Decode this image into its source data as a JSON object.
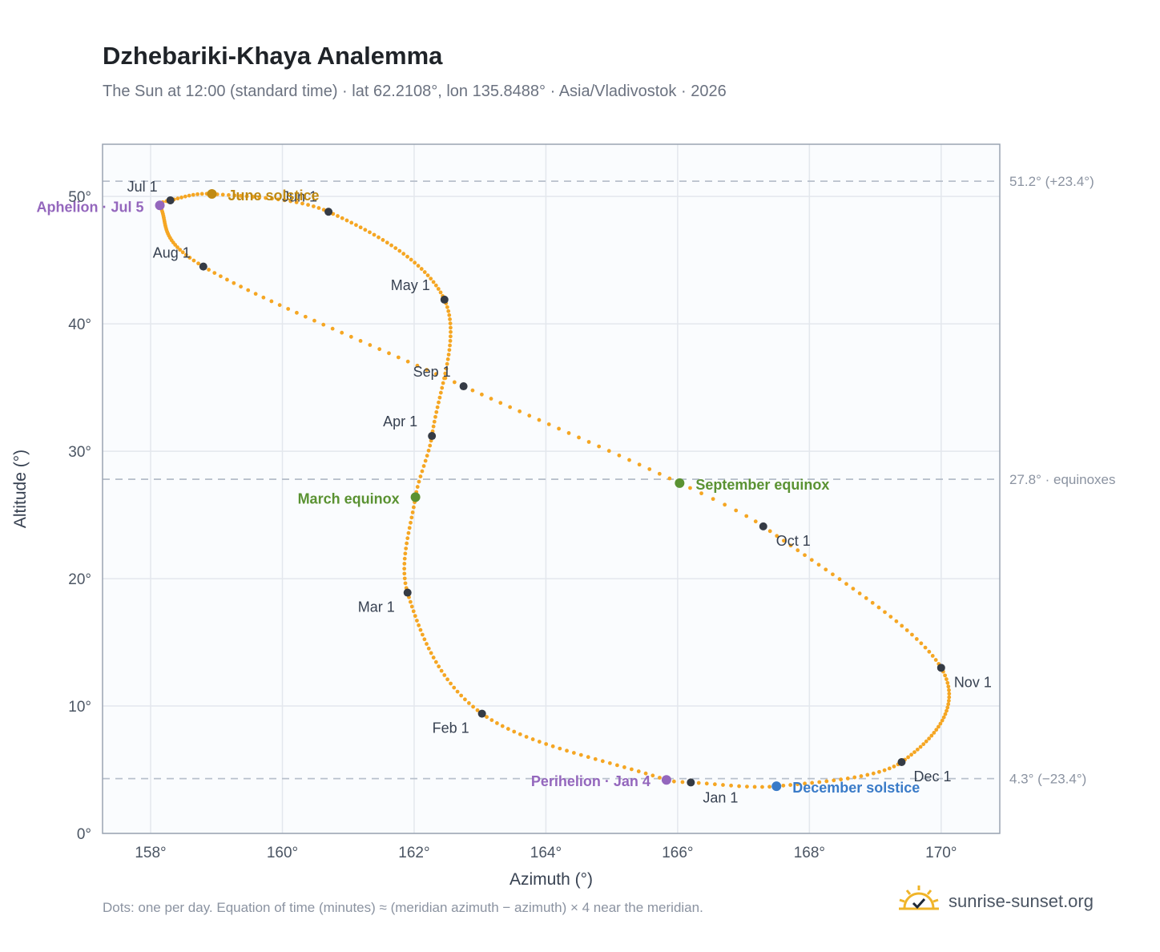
{
  "header": {
    "title": "Dzhebariki-Khaya Analemma",
    "subtitle": "The Sun at 12:00 (standard time) · lat 62.2108°, lon 135.8488° · Asia/Vladivostok · 2026"
  },
  "footer": {
    "note": "Dots: one per day. Equation of time (minutes) ≈ (meridian azimuth − azimuth) × 4 near the meridian.",
    "brand": "sunrise-sunset.org"
  },
  "colors": {
    "curve": "#f5a623",
    "month_marker": "#353b45",
    "solstice_june": "#c08a12",
    "solstice_december": "#3a7bc8",
    "equinox": "#5a9232",
    "apsis": "#9467bd",
    "reference_line": "#b8c0cc",
    "grid": "#e3e7ed",
    "plot_bg": "#fafcfe",
    "brand_icon": "#f0b429"
  },
  "chart_data": {
    "type": "scatter",
    "xlabel": "Azimuth (°)",
    "ylabel": "Altitude (°)",
    "xlim": [
      157.27,
      170.89
    ],
    "ylim": [
      0,
      54.1
    ],
    "xticks": [
      158,
      160,
      162,
      164,
      166,
      168,
      170
    ],
    "xtick_labels": [
      "158°",
      "160°",
      "162°",
      "164°",
      "166°",
      "168°",
      "170°"
    ],
    "yticks": [
      0,
      10,
      20,
      30,
      40,
      50
    ],
    "ytick_labels": [
      "0°",
      "10°",
      "20°",
      "30°",
      "40°",
      "50°"
    ],
    "grid": true,
    "reference_lines": [
      {
        "y": 51.2,
        "label": "51.2° (+23.4°)"
      },
      {
        "y": 27.8,
        "label": "27.8° · equinoxes"
      },
      {
        "y": 4.3,
        "label": "4.3° (−23.4°)"
      }
    ],
    "months": [
      {
        "label": "Jan 1",
        "x": 166.2,
        "y": 4.0
      },
      {
        "label": "Feb 1",
        "x": 163.03,
        "y": 9.4
      },
      {
        "label": "Mar 1",
        "x": 161.9,
        "y": 18.9
      },
      {
        "label": "Apr 1",
        "x": 162.27,
        "y": 31.2
      },
      {
        "label": "May 1",
        "x": 162.46,
        "y": 41.9
      },
      {
        "label": "Jun 1",
        "x": 160.7,
        "y": 48.8
      },
      {
        "label": "Jul 1",
        "x": 158.3,
        "y": 49.7
      },
      {
        "label": "Aug 1",
        "x": 158.8,
        "y": 44.5
      },
      {
        "label": "Sep 1",
        "x": 162.75,
        "y": 35.1
      },
      {
        "label": "Oct 1",
        "x": 167.3,
        "y": 24.1
      },
      {
        "label": "Nov 1",
        "x": 170.0,
        "y": 13.0
      },
      {
        "label": "Dec 1",
        "x": 169.4,
        "y": 5.6
      }
    ],
    "events": [
      {
        "label": "June solstice",
        "x": 158.93,
        "y": 50.2,
        "kind": "solstice_june"
      },
      {
        "label": "December solstice",
        "x": 167.5,
        "y": 3.7,
        "kind": "solstice_december"
      },
      {
        "label": "March equinox",
        "x": 162.02,
        "y": 26.4,
        "kind": "equinox"
      },
      {
        "label": "September equinox",
        "x": 166.03,
        "y": 27.5,
        "kind": "equinox"
      },
      {
        "label": "Aphelion · Jul 5",
        "x": 158.14,
        "y": 49.3,
        "kind": "apsis"
      },
      {
        "label": "Perihelion · Jan 4",
        "x": 165.83,
        "y": 4.2,
        "kind": "apsis"
      }
    ]
  }
}
